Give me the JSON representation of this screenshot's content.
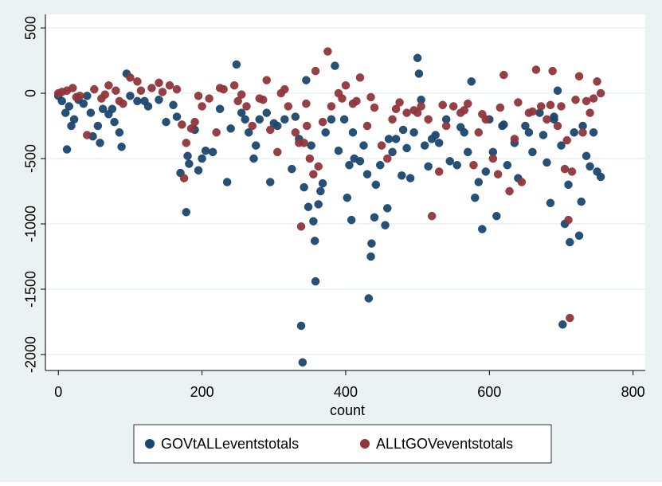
{
  "chart_data": {
    "type": "scatter",
    "xlabel": "count",
    "xlim": [
      -18,
      817
    ],
    "ylim": [
      -2122,
      604
    ],
    "xticks": [
      0,
      200,
      400,
      600,
      800
    ],
    "yticks": [
      -2000,
      -1500,
      -1000,
      -500,
      0,
      500
    ],
    "grid": true,
    "legend": "bottom",
    "series": [
      {
        "name": "GOVtALLeventstotals",
        "color": "#1a476f",
        "x": [
          0,
          5,
          10,
          12,
          18,
          22,
          28,
          35,
          40,
          48,
          55,
          58,
          62,
          70,
          78,
          85,
          88,
          95,
          100,
          110,
          125,
          140,
          150,
          165,
          170,
          178,
          180,
          182,
          190,
          195,
          200,
          205,
          215,
          225,
          235,
          240,
          248,
          255,
          265,
          272,
          275,
          280,
          290,
          295,
          305,
          315,
          325,
          335,
          338,
          340,
          342,
          345,
          348,
          352,
          355,
          357,
          358,
          362,
          365,
          368,
          372,
          380,
          385,
          390,
          398,
          402,
          405,
          408,
          412,
          420,
          425,
          430,
          432,
          435,
          436,
          440,
          442,
          448,
          455,
          458,
          465,
          470,
          478,
          485,
          490,
          495,
          500,
          502,
          505,
          510,
          515,
          520,
          530,
          540,
          545,
          555,
          565,
          570,
          575,
          580,
          585,
          590,
          595,
          600,
          605,
          610,
          618,
          625,
          635,
          640,
          650,
          660,
          670,
          675,
          680,
          685,
          690,
          695,
          700,
          702,
          705,
          710,
          712,
          718,
          725,
          728,
          735,
          740,
          745,
          750,
          755,
          15,
          45,
          75,
          120,
          160,
          260,
          300,
          330,
          410,
          460,
          480,
          525,
          560,
          620,
          655,
          690,
          730
        ],
        "values": [
          -20,
          -60,
          -150,
          -430,
          -250,
          -200,
          -50,
          -80,
          -20,
          -330,
          -250,
          -380,
          -120,
          -160,
          -220,
          -300,
          -410,
          150,
          -20,
          -60,
          -100,
          -50,
          -220,
          -180,
          -610,
          -910,
          -480,
          -540,
          -280,
          -590,
          -500,
          -440,
          -450,
          -120,
          -680,
          -270,
          220,
          -150,
          -300,
          -500,
          -400,
          -200,
          -150,
          -680,
          -250,
          -200,
          -580,
          -350,
          -1780,
          -2060,
          -720,
          100,
          -870,
          -400,
          -980,
          -1130,
          -1440,
          -850,
          -750,
          -690,
          -300,
          -200,
          210,
          -440,
          -200,
          -800,
          -550,
          -970,
          -500,
          -520,
          -400,
          -620,
          -1570,
          -1250,
          -1150,
          -950,
          -700,
          -550,
          -1010,
          -880,
          -450,
          -350,
          -630,
          -420,
          -650,
          -300,
          270,
          150,
          -50,
          -400,
          -560,
          -350,
          -380,
          -200,
          -520,
          -550,
          -300,
          -450,
          90,
          -800,
          -680,
          -1040,
          -600,
          -200,
          -450,
          -940,
          -250,
          -550,
          -380,
          -650,
          -250,
          -450,
          -150,
          -320,
          -530,
          -840,
          -180,
          20,
          -400,
          -1770,
          -1000,
          -700,
          -1140,
          -300,
          -1090,
          -830,
          -480,
          -560,
          -300,
          -600,
          -640,
          -100,
          -150,
          -120,
          -60,
          -90,
          -200,
          -230,
          -180,
          -300,
          -350,
          -280,
          -320,
          -260,
          -240,
          -300,
          -200,
          -250
        ]
      },
      {
        "name": "ALLtGOVeventstotals",
        "color": "#90353b",
        "x": [
          0,
          5,
          12,
          20,
          30,
          40,
          50,
          60,
          70,
          80,
          90,
          100,
          110,
          130,
          140,
          155,
          165,
          172,
          175,
          178,
          185,
          190,
          200,
          210,
          220,
          230,
          245,
          250,
          262,
          270,
          280,
          290,
          295,
          305,
          310,
          320,
          330,
          335,
          338,
          342,
          346,
          350,
          355,
          358,
          362,
          368,
          375,
          380,
          390,
          400,
          410,
          420,
          430,
          440,
          450,
          458,
          465,
          475,
          485,
          495,
          505,
          515,
          520,
          530,
          540,
          550,
          560,
          570,
          578,
          585,
          595,
          605,
          612,
          620,
          628,
          635,
          645,
          655,
          665,
          672,
          680,
          688,
          695,
          700,
          705,
          708,
          710,
          712,
          715,
          720,
          725,
          730,
          740,
          750,
          755,
          25,
          65,
          85,
          115,
          145,
          195,
          225,
          255,
          285,
          315,
          345,
          395,
          415,
          435,
          470,
          500,
          535,
          565,
          590,
          615,
          640,
          660,
          685,
          735,
          745
        ],
        "values": [
          0,
          10,
          20,
          40,
          -20,
          -320,
          30,
          -40,
          60,
          20,
          -80,
          120,
          90,
          40,
          80,
          60,
          30,
          -240,
          -650,
          -380,
          -270,
          -220,
          -100,
          -40,
          -300,
          30,
          60,
          -60,
          -100,
          -250,
          -40,
          100,
          -280,
          -450,
          0,
          -100,
          -300,
          -380,
          -1020,
          -380,
          -250,
          -500,
          -620,
          170,
          -560,
          -220,
          320,
          -100,
          0,
          60,
          -80,
          120,
          -250,
          -110,
          -400,
          -500,
          -200,
          -70,
          -150,
          -130,
          -100,
          -200,
          -940,
          -600,
          -250,
          -100,
          -150,
          -80,
          -550,
          -300,
          -200,
          -500,
          -620,
          140,
          -750,
          -350,
          -680,
          -150,
          180,
          -100,
          -200,
          170,
          -250,
          -100,
          -580,
          -360,
          -970,
          -1720,
          -600,
          -50,
          130,
          -300,
          -150,
          90,
          0,
          -30,
          -10,
          -60,
          20,
          10,
          -20,
          40,
          -10,
          -50,
          30,
          -80,
          -40,
          -60,
          -30,
          -120,
          -150,
          -90,
          -130,
          -160,
          -110,
          -70,
          -140,
          -90,
          -60,
          -40
        ]
      }
    ]
  }
}
